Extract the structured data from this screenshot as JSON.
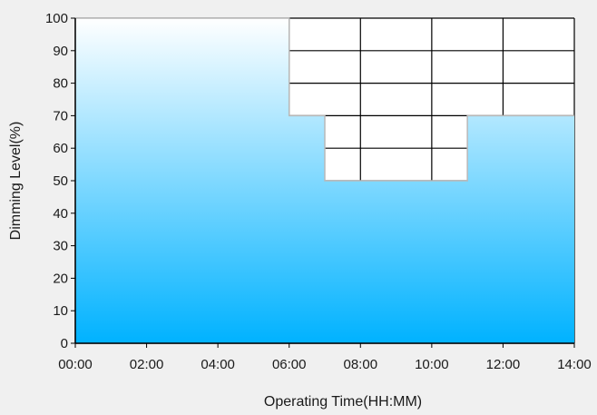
{
  "chart_data": {
    "type": "area",
    "title": "",
    "xlabel": "Operating Time(HH:MM)",
    "ylabel": "Dimming Level(%)",
    "x_ticks": [
      "00:00",
      "02:00",
      "04:00",
      "06:00",
      "08:00",
      "10:00",
      "12:00",
      "14:00"
    ],
    "y_ticks": [
      "0",
      "10",
      "20",
      "30",
      "40",
      "50",
      "60",
      "70",
      "80",
      "90",
      "100"
    ],
    "xlim": [
      0,
      14
    ],
    "ylim": [
      0,
      100
    ],
    "series": [
      {
        "x": [
          0,
          6,
          6,
          7,
          7,
          11,
          11,
          14
        ],
        "y": [
          100,
          100,
          70,
          70,
          50,
          50,
          70,
          70
        ]
      }
    ],
    "grid": true,
    "colors": {
      "fill_top": "#ffffff",
      "fill_bottom": "#00b2ff",
      "grid": "#000000",
      "background": "#f0f0f0",
      "plot_background": "#ffffff"
    }
  }
}
